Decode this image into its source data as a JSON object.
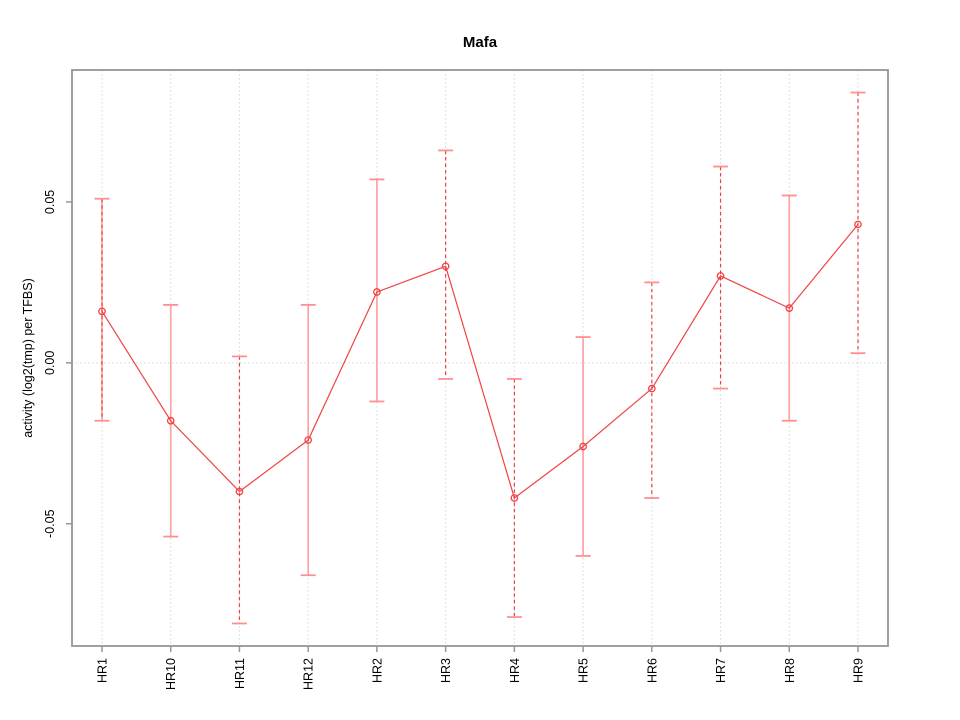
{
  "chart_data": {
    "type": "line",
    "title": "Mafa",
    "xlabel": "",
    "ylabel": "activity (log2(tmp) per TFBS)",
    "categories": [
      "HR1",
      "HR10",
      "HR11",
      "HR12",
      "HR2",
      "HR3",
      "HR4",
      "HR5",
      "HR6",
      "HR7",
      "HR8",
      "HR9"
    ],
    "series": [
      {
        "name": "activity",
        "values": [
          0.016,
          -0.018,
          -0.04,
          -0.024,
          0.022,
          0.03,
          -0.042,
          -0.026,
          -0.008,
          0.027,
          0.017,
          0.043
        ],
        "ci_low": [
          -0.018,
          -0.054,
          -0.081,
          -0.066,
          -0.012,
          -0.005,
          -0.079,
          -0.06,
          -0.042,
          -0.008,
          -0.018,
          0.003
        ],
        "ci_high": [
          0.051,
          0.018,
          0.002,
          0.018,
          0.057,
          0.066,
          -0.005,
          0.008,
          0.025,
          0.061,
          0.052,
          0.084
        ],
        "bar_styles": [
          "dashed-pink",
          "solid",
          "dashed",
          "solid",
          "solid",
          "dashed",
          "dashed",
          "solid",
          "dashed",
          "dashed",
          "solid",
          "dashed"
        ]
      }
    ],
    "ylim": [
      -0.088,
      0.091
    ],
    "yticks": [
      {
        "value": -0.05,
        "label": "-0.05"
      },
      {
        "value": 0.0,
        "label": "0.00"
      },
      {
        "value": 0.05,
        "label": "0.05"
      }
    ],
    "grid": {
      "vertical": "dotted line at each category",
      "horizontal": "dotted line at zero"
    },
    "legend": "none",
    "marker": "open-circle",
    "colors": {
      "line": "#f04343",
      "point": "#f04343",
      "bar_solid": "#ffa2a2",
      "bar_cap": "#ff9090",
      "bar_dashed": "#ee4040",
      "frame": "#969696",
      "grid": "#d8d8d8",
      "text": "#000000"
    }
  }
}
